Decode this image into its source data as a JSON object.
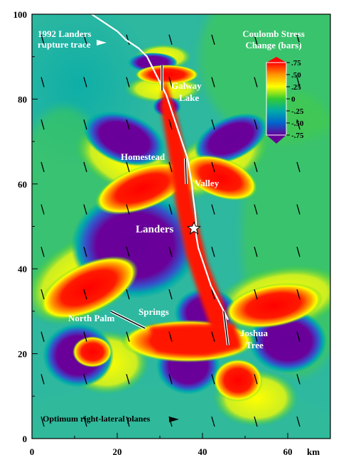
{
  "chart_data": {
    "type": "heatmap",
    "title": "Coulomb Stress Change (bars)",
    "title_line1": "Coulomb Stress",
    "title_line2": "Change (bars)",
    "xlim": [
      0,
      70
    ],
    "ylim": [
      0,
      100
    ],
    "x_ticks": [
      0,
      20,
      40,
      60
    ],
    "y_ticks": [
      0,
      20,
      40,
      60,
      80,
      100
    ],
    "x_unit": "km",
    "colorbar": {
      "min": -0.75,
      "max": 0.75,
      "ticks": [
        ".75",
        ".50",
        ".25",
        "0",
        "-.25",
        "-.50",
        "-.75"
      ],
      "tick_values": [
        0.75,
        0.5,
        0.25,
        0,
        -0.25,
        -0.5,
        -0.75
      ],
      "colors": [
        "#ff0000",
        "#ff9900",
        "#ffff00",
        "#33cc33",
        "#00aaaa",
        "#0066cc",
        "#660099"
      ]
    },
    "annotations": {
      "rupture": {
        "line1": "1992 Landers",
        "line2": "rupture trace"
      },
      "optimum": "Optimum right-lateral planes",
      "epicenter": "Landers",
      "galway_1": "Galway",
      "galway_2": "Lake",
      "homestead": "Homestead",
      "valley": "Valley",
      "north_palm": "North Palm",
      "springs": "Springs",
      "joshua_1": "Joshua",
      "joshua_2": "Tree"
    },
    "rupture_trace": [
      [
        14,
        100
      ],
      [
        17,
        98
      ],
      [
        20,
        96
      ],
      [
        22,
        94
      ],
      [
        25,
        92
      ],
      [
        27,
        90
      ],
      [
        28.5,
        87
      ],
      [
        30,
        84
      ],
      [
        31.5,
        81
      ],
      [
        32.5,
        78
      ],
      [
        33.5,
        75
      ],
      [
        34.5,
        72
      ],
      [
        35.5,
        69
      ],
      [
        36.5,
        66
      ],
      [
        37,
        63
      ],
      [
        37.5,
        60
      ],
      [
        37.8,
        57
      ],
      [
        38.2,
        54
      ],
      [
        38.5,
        51
      ],
      [
        38.5,
        48
      ],
      [
        39,
        45
      ],
      [
        40,
        42
      ],
      [
        41,
        39
      ],
      [
        42,
        36
      ],
      [
        43,
        34
      ],
      [
        44,
        32
      ],
      [
        45,
        30
      ],
      [
        46,
        28
      ]
    ],
    "fault_segments": [
      [
        [
          30.5,
          88
        ],
        [
          30.5,
          82
        ]
      ],
      [
        [
          36,
          66
        ],
        [
          36.2,
          60
        ]
      ],
      [
        [
          18.5,
          30
        ],
        [
          26.5,
          26
        ]
      ],
      [
        [
          45,
          30
        ],
        [
          46,
          22
        ]
      ]
    ],
    "epicenter_point": [
      38,
      49.5
    ]
  }
}
